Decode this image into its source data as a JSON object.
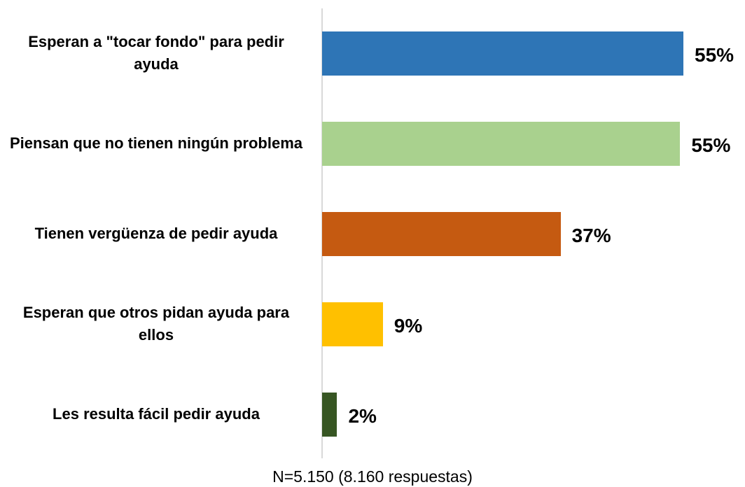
{
  "chart_data": {
    "type": "hbar",
    "categories": [
      "Esperan a \"tocar fondo\" para pedir ayuda",
      "Piensan que no tienen ningún problema",
      "Tienen vergüenza de pedir ayuda",
      "Esperan que otros pidan ayuda para ellos",
      "Les resulta fácil pedir ayuda"
    ],
    "values": [
      55.3,
      54.8,
      36.5,
      9.3,
      2.3
    ],
    "value_labels": [
      "55%",
      "55%",
      "37%",
      "9%",
      "2%"
    ],
    "colors": [
      "#2e75b6",
      "#a9d18e",
      "#c55a11",
      "#ffc000",
      "#375623"
    ],
    "footnote": "N=5.150 (8.160 respuestas)"
  }
}
